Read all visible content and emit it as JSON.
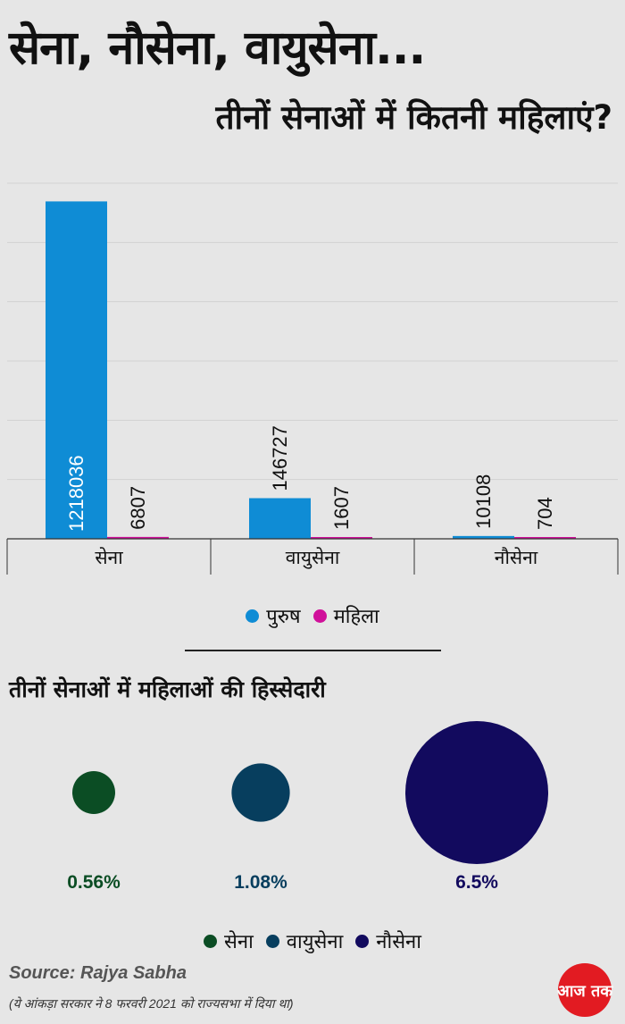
{
  "header": {
    "title": "सेना, नौसेना, वायुसेना...",
    "subtitle": "तीनों सेनाओं में कितनी महिलाएं?"
  },
  "chart_data": [
    {
      "type": "bar",
      "categories": [
        "सेना",
        "वायुसेना",
        "नौसेना"
      ],
      "series": [
        {
          "name": "पुरुष",
          "values": [
            1218036,
            146727,
            10108
          ],
          "color": "#0f8cd5"
        },
        {
          "name": "महिला",
          "values": [
            6807,
            1607,
            704
          ],
          "color": "#d0109a"
        }
      ],
      "ylim": [
        0,
        1300000
      ],
      "grid": true,
      "legend": "bottom"
    },
    {
      "type": "bubble",
      "title": "तीनों सेनाओं में महिलाओं की हिस्सेदारी",
      "categories": [
        "सेना",
        "वायुसेना",
        "नौसेना"
      ],
      "values": [
        0.56,
        1.08,
        6.5
      ],
      "labels": [
        "0.56%",
        "1.08%",
        "6.5%"
      ],
      "colors": [
        "#0b4d24",
        "#073e5e",
        "#120a5e"
      ],
      "legend": "bottom"
    }
  ],
  "footer": {
    "source": "Source: Rajya Sabha",
    "note": "(ये आंकड़ा सरकार ने 8 फरवरी 2021 को राज्यसभा में दिया था)",
    "logo_text": "आज तक"
  }
}
